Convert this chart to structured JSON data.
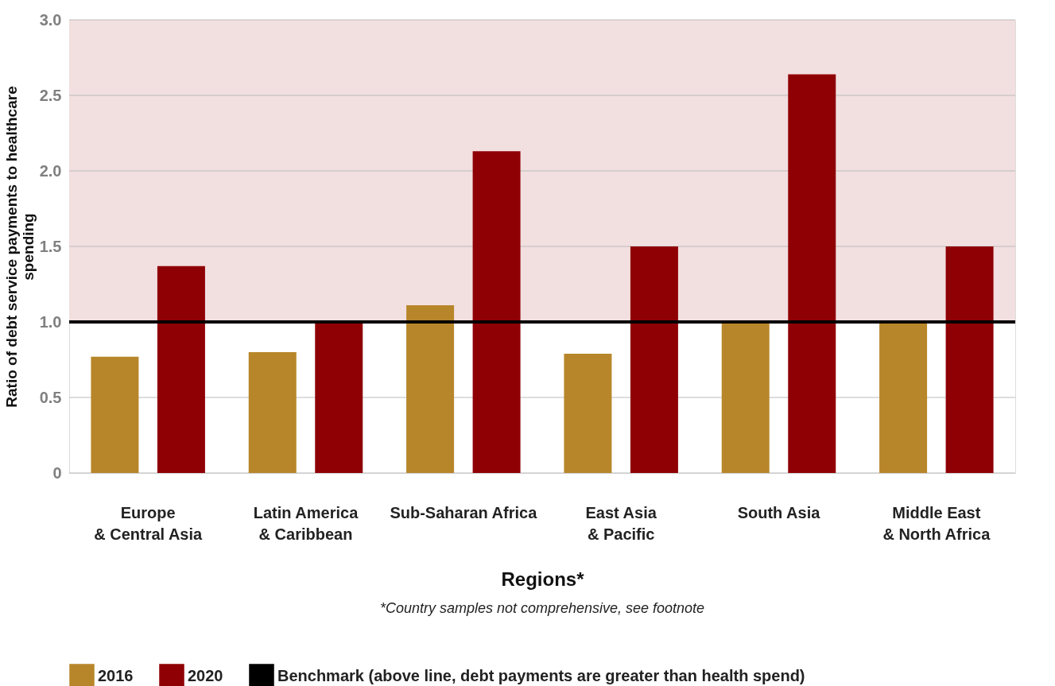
{
  "chart_data": {
    "type": "bar",
    "ylabel": "Ratio of debt service payments to healthcare spending",
    "xlabel": "Regions*",
    "categories": [
      "Europe & Central Asia",
      "Latin America & Caribbean",
      "Sub-Saharan Africa",
      "East Asia & Pacific",
      "South Asia",
      "Middle East & North Africa"
    ],
    "series": [
      {
        "name": "2016",
        "color": "#b8862a",
        "values": [
          0.77,
          0.8,
          1.11,
          0.79,
          1.0,
          1.0
        ]
      },
      {
        "name": "2020",
        "color": "#8f0005",
        "values": [
          1.37,
          1.0,
          2.13,
          1.5,
          2.64,
          1.5
        ]
      }
    ],
    "ylim": [
      0,
      3.0
    ],
    "yticks": [
      {
        "value": 0,
        "label": "0"
      },
      {
        "value": 0.5,
        "label": "0.5"
      },
      {
        "value": 1,
        "label": "1.0"
      },
      {
        "value": 1.5,
        "label": "1.5"
      },
      {
        "value": 2,
        "label": "2.0"
      },
      {
        "value": 2.5,
        "label": "2.5"
      },
      {
        "value": 3,
        "label": "3.0"
      }
    ],
    "ref_lines": [
      {
        "axis": "y",
        "value": 1.0,
        "label": "Benchmark (above line, debt payments are greater than health spend)",
        "color": "#000000"
      }
    ],
    "bands": [
      {
        "axis": "y",
        "from": 1.0,
        "to": 3.0,
        "color": "#f2dfe0"
      }
    ],
    "annotations": [
      "*Country samples not comprehensive, see footnote"
    ],
    "grid": "y",
    "legend": "bottom"
  }
}
